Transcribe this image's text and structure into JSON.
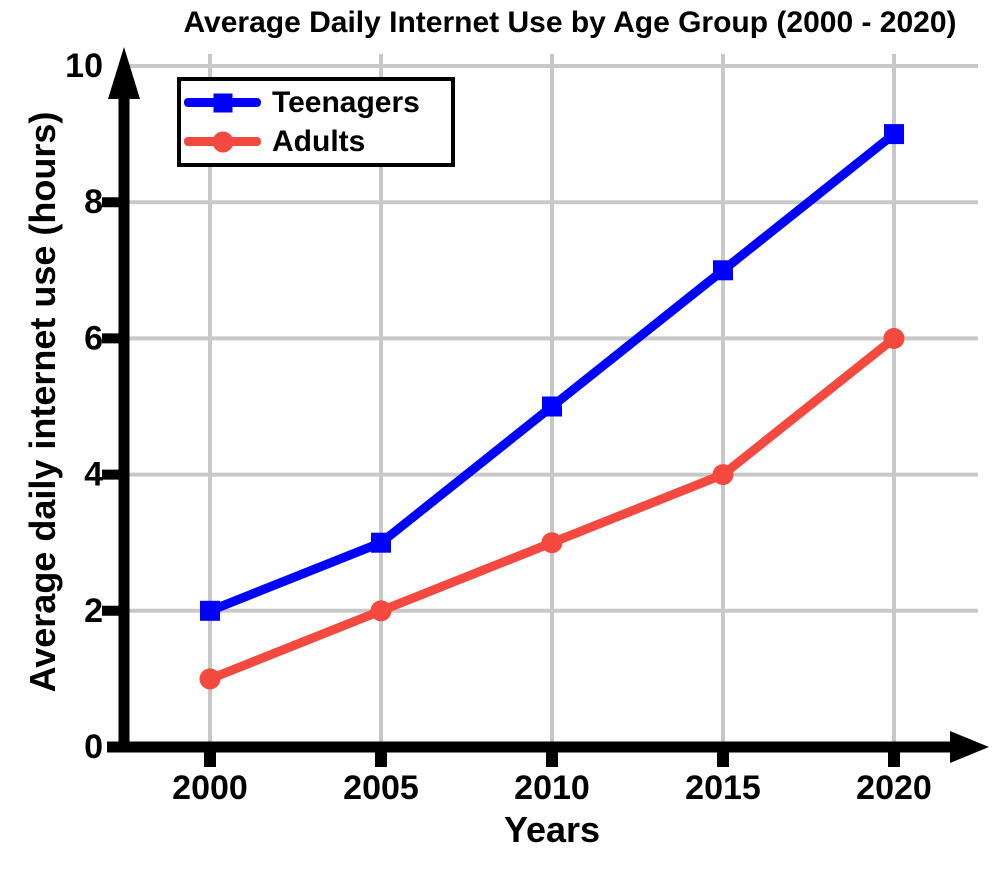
{
  "chart_data": {
    "type": "line",
    "title": "Average Daily Internet Use by Age Group (2000 - 2020)",
    "xlabel": "Years",
    "ylabel": "Average daily internet use (hours)",
    "categories": [
      "2000",
      "2005",
      "2010",
      "2015",
      "2020"
    ],
    "series": [
      {
        "name": "Teenagers",
        "values": [
          2,
          3,
          5,
          7,
          9
        ],
        "color": "#0000ff",
        "marker": "square"
      },
      {
        "name": "Adults",
        "values": [
          1,
          2,
          3,
          4,
          6
        ],
        "color": "#f4493f",
        "marker": "circle"
      }
    ],
    "ylim": [
      0,
      10
    ],
    "yticks": [
      0,
      2,
      4,
      6,
      8,
      10
    ],
    "grid": true,
    "gridline_color": "#c8c8c8",
    "axis_color": "#000000",
    "background": "#ffffff",
    "legend_position": "top-left",
    "axis_arrows": "up-and-right"
  }
}
